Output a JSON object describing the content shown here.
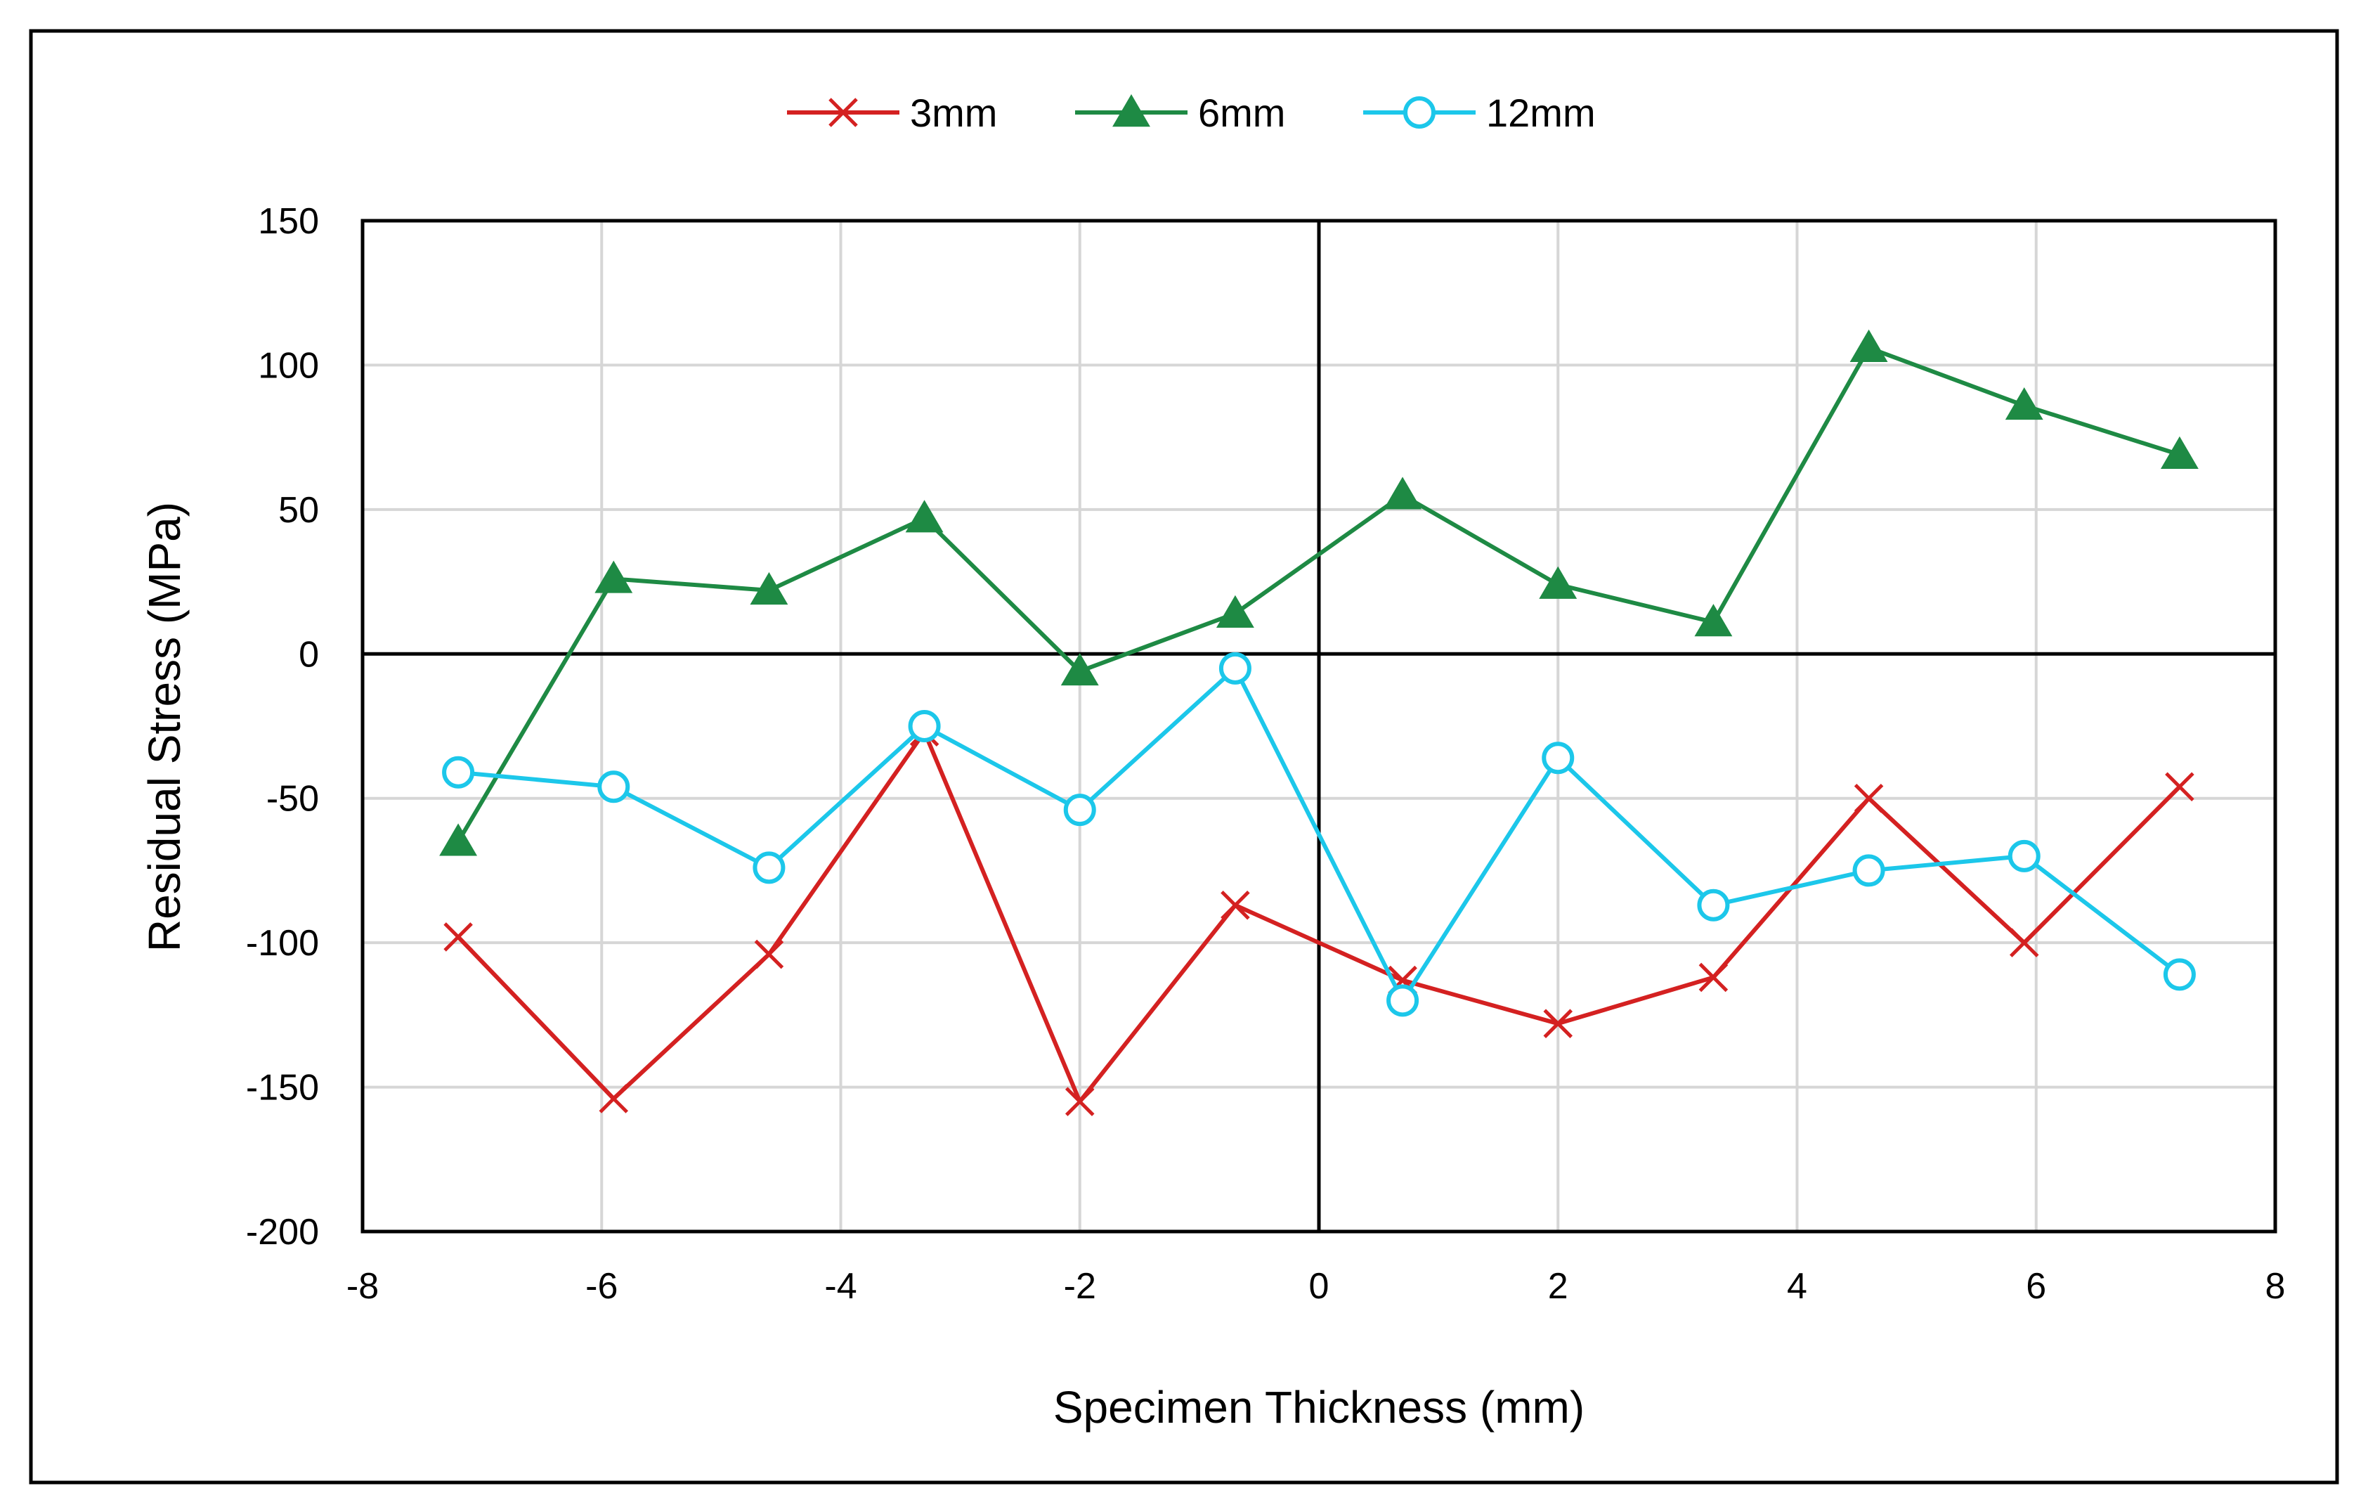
{
  "chart_data": {
    "type": "line",
    "title": "",
    "xlabel": "Specimen Thickness (mm)",
    "ylabel": "Residual Stress (MPa)",
    "xlim": [
      -8,
      8
    ],
    "ylim": [
      -200,
      150
    ],
    "xticks": [
      -8,
      -6,
      -4,
      -2,
      0,
      2,
      4,
      6,
      8
    ],
    "yticks": [
      150,
      100,
      50,
      0,
      -50,
      -100,
      -150,
      -200
    ],
    "xtick_labels": [
      "-8",
      "-6",
      "-4",
      "-2",
      "0",
      "2",
      "4",
      "6",
      "8"
    ],
    "ytick_labels": [
      "150",
      "100",
      "50",
      "0",
      "-50",
      "-100",
      "-150",
      "-200"
    ],
    "grid": true,
    "legend_position": "top-center",
    "series": [
      {
        "name": "3mm",
        "color": "#d42121",
        "marker": "x",
        "x": [
          -7.2,
          -5.9,
          -4.6,
          -3.3,
          -2.0,
          -0.7,
          0.7,
          2.0,
          3.3,
          4.6,
          5.9,
          7.2
        ],
        "values": [
          -98,
          -154,
          -104,
          -27,
          -155,
          -87,
          -113,
          -128,
          -112,
          -50,
          -100,
          -46
        ]
      },
      {
        "name": "6mm",
        "color": "#1e8a44",
        "marker": "triangle",
        "x": [
          -7.2,
          -5.9,
          -4.6,
          -3.3,
          -2.0,
          -0.7,
          0.7,
          2.0,
          3.3,
          4.6,
          5.9,
          7.2
        ],
        "values": [
          -65,
          26,
          22,
          47,
          -6,
          14,
          55,
          24,
          11,
          106,
          86,
          69
        ]
      },
      {
        "name": "12mm",
        "color": "#1cc7ea",
        "marker": "circle",
        "x": [
          -7.2,
          -5.9,
          -4.6,
          -3.3,
          -2.0,
          -0.7,
          0.7,
          2.0,
          3.3,
          4.6,
          5.9,
          7.2
        ],
        "values": [
          -41,
          -46,
          -74,
          -25,
          -54,
          -5,
          -120,
          -36,
          -87,
          -75,
          -70,
          -111
        ]
      }
    ]
  }
}
